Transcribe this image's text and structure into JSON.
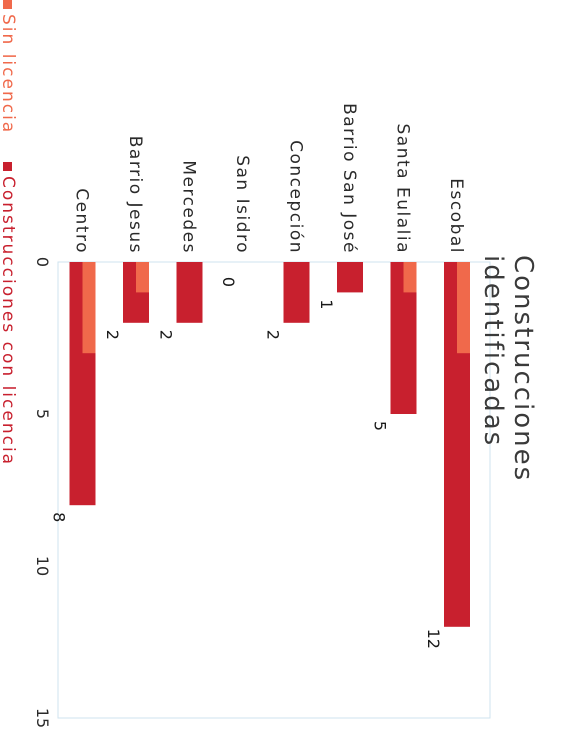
{
  "chart_data": {
    "type": "bar",
    "title": "Construcciones identificadas",
    "categories": [
      "Escobal",
      "Santa Eulalia",
      "Barrio San José",
      "Concepción",
      "San Isidro",
      "Mercedes",
      "Barrio Jesus",
      "Centro"
    ],
    "series": [
      {
        "name": "Sin licencia",
        "color": "#f0694b",
        "values": [
          3,
          1,
          0,
          0,
          0,
          0,
          1,
          3
        ]
      },
      {
        "name": "Construcciones con licencia",
        "color": "#c8202e",
        "values": [
          12,
          5,
          1,
          2,
          0,
          2,
          2,
          8
        ]
      }
    ],
    "data_labels": [
      "12",
      "5",
      "1",
      "2",
      "0",
      "2",
      "2",
      "8"
    ],
    "ticks": [
      0,
      5,
      10,
      15
    ],
    "xlim": [
      0,
      15
    ],
    "orientation": "rotated",
    "grid": false,
    "legend_position": "bottom"
  }
}
